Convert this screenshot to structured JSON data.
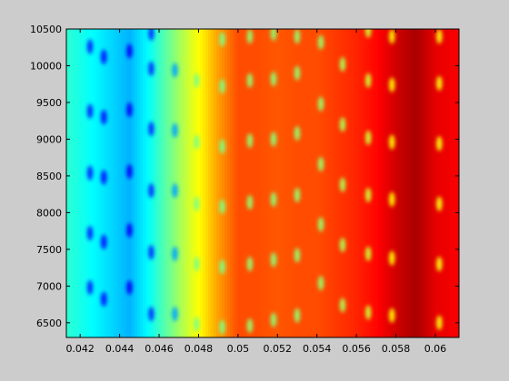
{
  "figure": {
    "background": "#cccccc"
  },
  "chart_data": {
    "type": "heatmap",
    "title": "",
    "xlabel": "",
    "ylabel": "",
    "colormap": "jet",
    "xlim": [
      0.0413,
      0.0612
    ],
    "ylim": [
      6300,
      10500
    ],
    "x_ticks": [
      0.042,
      0.044,
      0.046,
      0.048,
      0.05,
      0.052,
      0.054,
      0.056,
      0.058,
      0.06
    ],
    "x_tick_labels": [
      "0.042",
      "0.044",
      "0.046",
      "0.048",
      "0.05",
      "0.052",
      "0.054",
      "0.056",
      "0.058",
      "0.06"
    ],
    "y_ticks": [
      6500,
      7000,
      7500,
      8000,
      8500,
      9000,
      9500,
      10000,
      10500
    ],
    "y_tick_labels": [
      "6500",
      "7000",
      "7500",
      "8000",
      "8500",
      "9000",
      "9500",
      "10000",
      "10500"
    ],
    "value_range": [
      0,
      1
    ],
    "column_profile": {
      "x": [
        0.0413,
        0.0425,
        0.0435,
        0.0445,
        0.0455,
        0.0465,
        0.0475,
        0.0482,
        0.049,
        0.05,
        0.051,
        0.052,
        0.053,
        0.054,
        0.055,
        0.056,
        0.057,
        0.058,
        0.059,
        0.06,
        0.0612
      ],
      "values": [
        0.42,
        0.38,
        0.34,
        0.3,
        0.38,
        0.48,
        0.58,
        0.64,
        0.72,
        0.8,
        0.8,
        0.79,
        0.8,
        0.8,
        0.82,
        0.84,
        0.87,
        0.92,
        0.96,
        0.9,
        0.88
      ]
    },
    "blobs": [
      {
        "x": 0.0425,
        "y": [
          6980,
          7720,
          8540,
          9380,
          10260
        ]
      },
      {
        "x": 0.0432,
        "y": [
          6820,
          7600,
          8480,
          9300,
          10120
        ]
      },
      {
        "x": 0.0445,
        "y": [
          6980,
          7760,
          8560,
          9400,
          10200
        ]
      },
      {
        "x": 0.0456,
        "y": [
          6620,
          7460,
          8300,
          9140,
          9960,
          10440
        ]
      },
      {
        "x": 0.0468,
        "y": [
          6620,
          7440,
          8300,
          9120,
          9940
        ]
      },
      {
        "x": 0.0479,
        "y": [
          6480,
          7300,
          8120,
          8960,
          9800
        ]
      },
      {
        "x": 0.0492,
        "y": [
          6440,
          7260,
          8080,
          8900,
          9720,
          10360
        ]
      },
      {
        "x": 0.0506,
        "y": [
          6460,
          7300,
          8140,
          8980,
          9800,
          10400
        ]
      },
      {
        "x": 0.0518,
        "y": [
          6540,
          7360,
          8180,
          9000,
          9820,
          10440
        ]
      },
      {
        "x": 0.053,
        "y": [
          6600,
          7420,
          8240,
          9080,
          9900,
          10400
        ]
      },
      {
        "x": 0.0542,
        "y": [
          7040,
          7840,
          8660,
          9480,
          10320
        ]
      },
      {
        "x": 0.0553,
        "y": [
          6740,
          7560,
          8380,
          9200,
          10020
        ]
      },
      {
        "x": 0.0566,
        "y": [
          6640,
          7440,
          8240,
          9020,
          9800,
          10480
        ]
      },
      {
        "x": 0.0578,
        "y": [
          6600,
          7380,
          8180,
          8960,
          9740,
          10400
        ]
      },
      {
        "x": 0.0602,
        "y": [
          6500,
          7300,
          8120,
          8940,
          9760,
          10400
        ]
      }
    ]
  }
}
